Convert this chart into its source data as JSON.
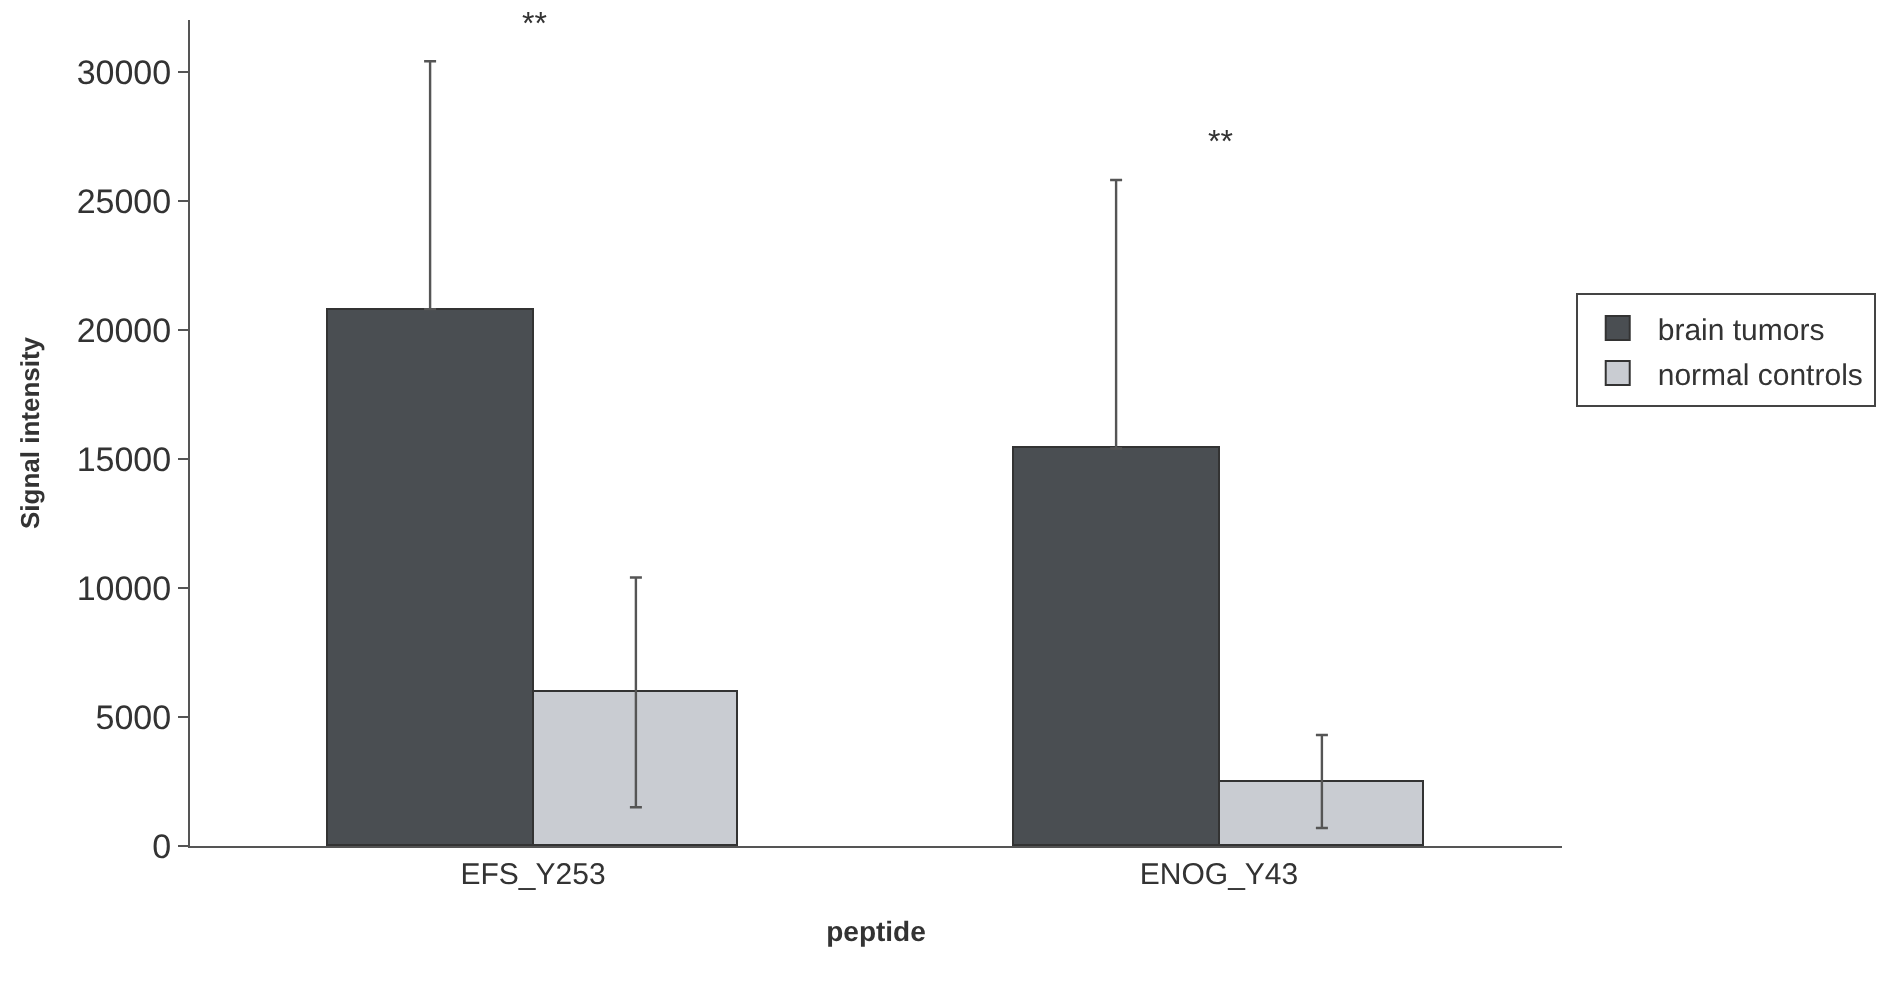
{
  "chart_data": {
    "type": "bar",
    "xlabel": "peptide",
    "ylabel": "Signal intensity",
    "categories": [
      "EFS_Y253",
      "ENOG_Y43"
    ],
    "series": [
      {
        "name": "brain tumors",
        "color": "#4a4e52",
        "values": [
          20800,
          15400
        ],
        "errors": [
          [
            20800,
            30400
          ],
          [
            15400,
            25800
          ]
        ]
      },
      {
        "name": "normal controls",
        "color": "#c9ccd2",
        "values": [
          6000,
          2500
        ],
        "errors": [
          [
            1500,
            10400
          ],
          [
            700,
            4300
          ]
        ]
      }
    ],
    "ylim": [
      0,
      32000
    ],
    "yticks": [
      0,
      5000,
      10000,
      15000,
      20000,
      25000,
      30000
    ],
    "annotations": [
      "**",
      "**"
    ],
    "legend": "right"
  }
}
